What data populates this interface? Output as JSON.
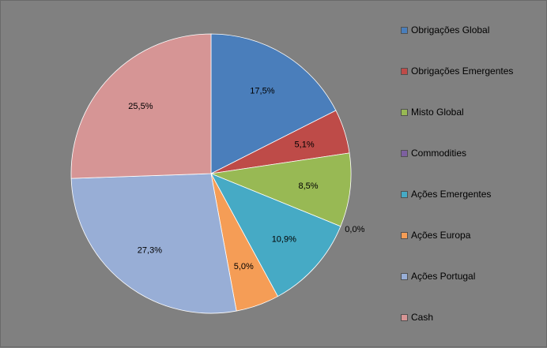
{
  "chart_data": {
    "type": "pie",
    "legend_position": "right",
    "slices": [
      {
        "label": "Obrigações Global",
        "value": 17.5,
        "value_label": "17,5%",
        "color": "#4a7ebb"
      },
      {
        "label": "Obrigações Emergentes",
        "value": 5.1,
        "value_label": "5,1%",
        "color": "#be4b48"
      },
      {
        "label": "Misto Global",
        "value": 8.5,
        "value_label": "8,5%",
        "color": "#98b954"
      },
      {
        "label": "Commodities",
        "value": 0.0,
        "value_label": "0,0%",
        "color": "#7d60a0"
      },
      {
        "label": "Ações Emergentes",
        "value": 10.9,
        "value_label": "10,9%",
        "color": "#46aac5"
      },
      {
        "label": "Ações Europa",
        "value": 5.0,
        "value_label": "5,0%",
        "color": "#f59d56"
      },
      {
        "label": "Ações Portugal",
        "value": 27.3,
        "value_label": "27,3%",
        "color": "#98aed6"
      },
      {
        "label": "Cash",
        "value": 25.5,
        "value_label": "25,5%",
        "color": "#d69595"
      }
    ]
  }
}
